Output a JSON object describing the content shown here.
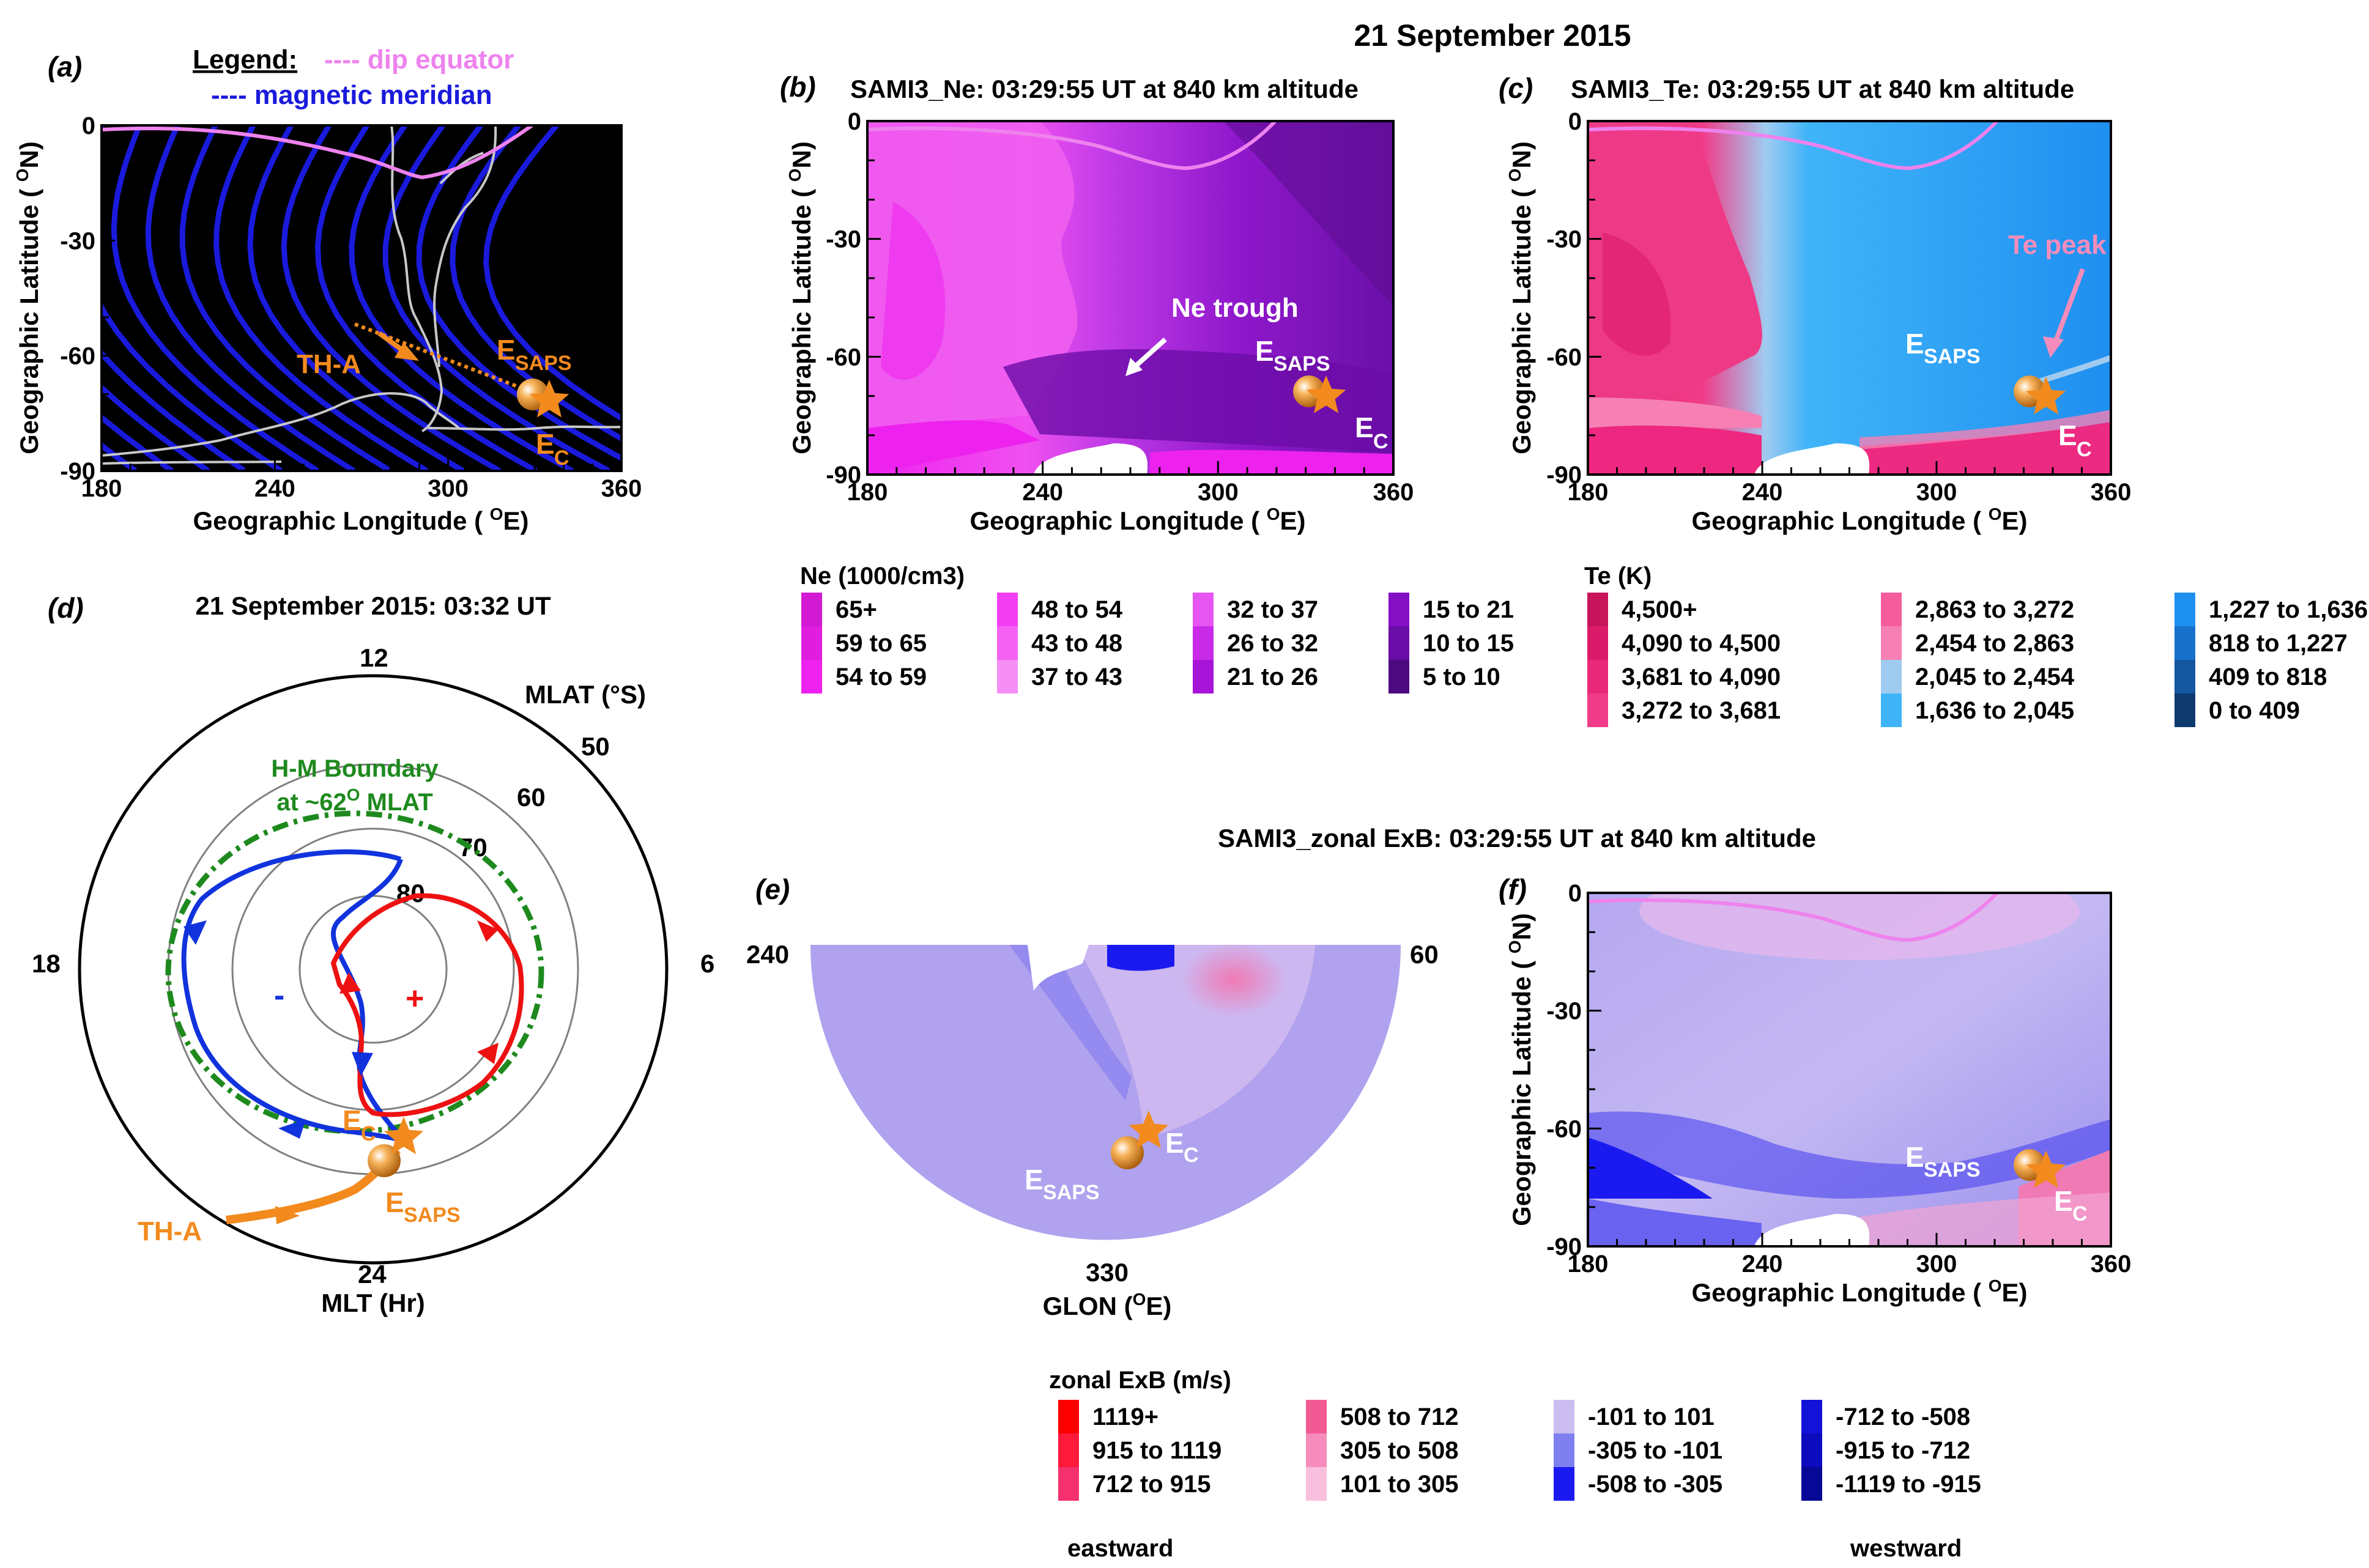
{
  "figure_title": "21 September 2015",
  "colors": {
    "dip_equator": "#ee82ee",
    "magnetic_meridian": "#1a1adc",
    "satellite": "#f28a1e",
    "boundary": "#1e8a1e",
    "pos_cell": "#ee1111",
    "neg_cell": "#1133dd"
  },
  "chart_data": [
    {
      "id": "a",
      "type": "map",
      "panel_label": "(a)",
      "legend": {
        "title": "Legend:",
        "dip_equator": "---- dip equator",
        "magnetic_meridian": "---- magnetic meridian"
      },
      "xlabel": "Geographic Longitude ( ",
      "xlabel_sup": "O",
      "xlabel_tail": "E)",
      "ylabel": "Geographic Latitude ( ",
      "ylabel_sup": "O",
      "ylabel_tail": "N)",
      "xlim": [
        180,
        360
      ],
      "ylim": [
        -90,
        0
      ],
      "xticks": [
        "180",
        "240",
        "300",
        "360"
      ],
      "yticks": [
        "0",
        "-30",
        "-60",
        "-90"
      ],
      "annotations": {
        "satellite": "TH-A",
        "esaps": "E",
        "esaps_sub": "SAPS",
        "ec": "E",
        "ec_sub": "C"
      },
      "markers": {
        "esaps": [
          331,
          -69
        ],
        "ec": [
          336,
          -71
        ]
      }
    },
    {
      "id": "b",
      "type": "heatmap",
      "panel_label": "(b)",
      "title": "SAMI3_Ne: 03:29:55 UT at 840 km altitude",
      "xlabel": "Geographic Longitude ( ",
      "xlabel_sup": "O",
      "xlabel_tail": "E)",
      "ylabel": "Geographic Latitude ( ",
      "ylabel_sup": "O",
      "ylabel_tail": "N)",
      "xlim": [
        180,
        360
      ],
      "ylim": [
        -90,
        0
      ],
      "xticks": [
        "180",
        "240",
        "300",
        "360"
      ],
      "yticks": [
        "0",
        "-30",
        "-60",
        "-90"
      ],
      "annotations": {
        "trough": "Ne trough",
        "esaps": "E",
        "esaps_sub": "SAPS",
        "ec": "E",
        "ec_sub": "C"
      },
      "legend_title": "Ne (1000/cm3)",
      "legend_items": [
        {
          "label": "65+",
          "color": "#d21ad2"
        },
        {
          "label": "59 to 65",
          "color": "#e01ee0"
        },
        {
          "label": "54 to 59",
          "color": "#ee22ee"
        },
        {
          "label": "48 to 54",
          "color": "#f23ef2"
        },
        {
          "label": "43 to 48",
          "color": "#f462f4"
        },
        {
          "label": "37 to 43",
          "color": "#f58ef5"
        },
        {
          "label": "32 to 37",
          "color": "#e654f2"
        },
        {
          "label": "26 to 32",
          "color": "#c82ae8"
        },
        {
          "label": "21 to 26",
          "color": "#a814d8"
        },
        {
          "label": "15 to 21",
          "color": "#8410c4"
        },
        {
          "label": "10 to 15",
          "color": "#6a0ca6"
        },
        {
          "label": "5 to 10",
          "color": "#4c0a80"
        }
      ]
    },
    {
      "id": "c",
      "type": "heatmap",
      "panel_label": "(c)",
      "title": "SAMI3_Te: 03:29:55 UT at 840 km altitude",
      "xlabel": "Geographic Longitude ( ",
      "xlabel_sup": "O",
      "xlabel_tail": "E)",
      "ylabel": "Geographic Latitude ( ",
      "ylabel_sup": "O",
      "ylabel_tail": "N)",
      "xlim": [
        180,
        360
      ],
      "ylim": [
        -90,
        0
      ],
      "xticks": [
        "180",
        "240",
        "300",
        "360"
      ],
      "yticks": [
        "0",
        "-30",
        "-60",
        "-90"
      ],
      "annotations": {
        "te_peak": "Te peak",
        "esaps": "E",
        "esaps_sub": "SAPS",
        "ec": "E",
        "ec_sub": "C"
      },
      "legend_title": "Te (K)",
      "legend_items": [
        {
          "label": "4,500+",
          "color": "#c8145a"
        },
        {
          "label": "4,090 to 4,500",
          "color": "#dc1a6a"
        },
        {
          "label": "3,681 to 4,090",
          "color": "#e82878"
        },
        {
          "label": "3,272 to 3,681",
          "color": "#f03c88"
        },
        {
          "label": "2,863 to 3,272",
          "color": "#f45c9c"
        },
        {
          "label": "2,454 to 2,863",
          "color": "#f680b4"
        },
        {
          "label": "2,045 to 2,454",
          "color": "#a0cbf0"
        },
        {
          "label": "1,636 to 2,045",
          "color": "#40b4f8"
        },
        {
          "label": "1,227 to 1,636",
          "color": "#1e90f0"
        },
        {
          "label": "818 to 1,227",
          "color": "#1872cc"
        },
        {
          "label": "409 to 818",
          "color": "#1456a0"
        },
        {
          "label": "0 to 409",
          "color": "#0f3a70"
        }
      ]
    },
    {
      "id": "d",
      "type": "polar",
      "panel_label": "(d)",
      "title": "21 September 2015: 03:32 UT",
      "mlt_labels": [
        "12",
        "18",
        "6",
        "24"
      ],
      "mlat_title": "MLAT (°S)",
      "mlat_rings": [
        "50",
        "60",
        "70",
        "80"
      ],
      "boundary_label_1": "H-M Boundary",
      "boundary_label_2": "at ~62",
      "boundary_label_sup": "O",
      "boundary_label_3": " MLAT",
      "boundary_mlat": 62,
      "xlabel": "MLT (Hr)",
      "plus_sign": "+",
      "minus_sign": "-",
      "annotations": {
        "satellite": "TH-A",
        "esaps": "E",
        "esaps_sub": "SAPS",
        "ec": "E",
        "ec_sub": "C"
      }
    },
    {
      "id": "e",
      "type": "heatmap",
      "panel_label": "(e)",
      "title": "SAMI3_zonal ExB: 03:29:55 UT at 840 km altitude",
      "left_label": "240",
      "right_label": "60",
      "bottom_label": "330",
      "xlabel": "GLON (",
      "xlabel_sup": "O",
      "xlabel_tail": "E)",
      "annotations": {
        "esaps": "E",
        "esaps_sub": "SAPS",
        "ec": "E",
        "ec_sub": "C"
      }
    },
    {
      "id": "f",
      "type": "heatmap",
      "panel_label": "(f)",
      "xlabel": "Geographic Longitude ( ",
      "xlabel_sup": "O",
      "xlabel_tail": "E)",
      "ylabel": "Geographic Latitude ( ",
      "ylabel_sup": "O",
      "ylabel_tail": "N)",
      "xlim": [
        180,
        360
      ],
      "ylim": [
        -90,
        0
      ],
      "xticks": [
        "180",
        "240",
        "300",
        "360"
      ],
      "yticks": [
        "0",
        "-30",
        "-60",
        "-90"
      ],
      "annotations": {
        "esaps": "E",
        "esaps_sub": "SAPS",
        "ec": "E",
        "ec_sub": "C"
      },
      "legend_title": "zonal ExB (m/s)",
      "legend_items": [
        {
          "label": "1119+",
          "color": "#ff0000"
        },
        {
          "label": "915 to 1119",
          "color": "#ff1a3c"
        },
        {
          "label": "712 to 915",
          "color": "#f5306e"
        },
        {
          "label": "508 to 712",
          "color": "#f25a94"
        },
        {
          "label": "305 to 508",
          "color": "#f58cbb"
        },
        {
          "label": "101 to 305",
          "color": "#f9c0de"
        },
        {
          "label": "-101 to 101",
          "color": "#cbbdf0"
        },
        {
          "label": "-305 to -101",
          "color": "#7f7ff0"
        },
        {
          "label": "-508 to -305",
          "color": "#1a1af0"
        },
        {
          "label": "-712 to -508",
          "color": "#1212d8"
        },
        {
          "label": "-915 to -712",
          "color": "#0c0cbe"
        },
        {
          "label": "-1119 to -915",
          "color": "#080896"
        }
      ],
      "legend_left": "eastward",
      "legend_right": "westward"
    }
  ]
}
